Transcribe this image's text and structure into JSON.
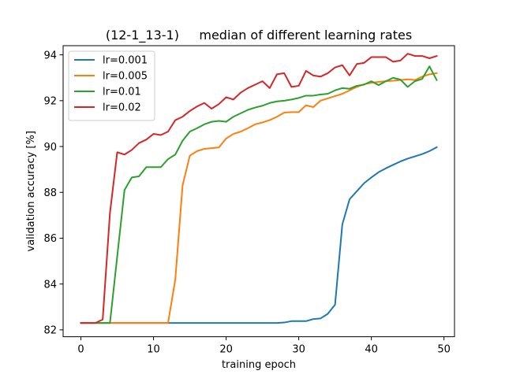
{
  "chart_data": {
    "type": "line",
    "title": "(12-1_13-1)     median of different learning rates",
    "xlabel": "training epoch",
    "ylabel": "validation accuracy [%]",
    "xlim": [
      -2.45,
      51.45
    ],
    "ylim": [
      81.7,
      94.4
    ],
    "xticks": [
      0,
      10,
      20,
      30,
      40,
      50
    ],
    "yticks": [
      82,
      84,
      86,
      88,
      90,
      92,
      94
    ],
    "legend_position": "upper-left",
    "grid": false,
    "x": [
      0,
      1,
      2,
      3,
      4,
      5,
      6,
      7,
      8,
      9,
      10,
      11,
      12,
      13,
      14,
      15,
      16,
      17,
      18,
      19,
      20,
      21,
      22,
      23,
      24,
      25,
      26,
      27,
      28,
      29,
      30,
      31,
      32,
      33,
      34,
      35,
      36,
      37,
      38,
      39,
      40,
      41,
      42,
      43,
      44,
      45,
      46,
      47,
      48,
      49
    ],
    "series": [
      {
        "name": "lr=0.001",
        "color": "#1f77b4",
        "values": [
          82.3,
          82.3,
          82.3,
          82.3,
          82.3,
          82.3,
          82.3,
          82.3,
          82.3,
          82.3,
          82.3,
          82.3,
          82.3,
          82.3,
          82.3,
          82.3,
          82.3,
          82.3,
          82.3,
          82.3,
          82.3,
          82.3,
          82.3,
          82.3,
          82.3,
          82.3,
          82.3,
          82.3,
          82.32,
          82.38,
          82.38,
          82.38,
          82.47,
          82.5,
          82.7,
          83.1,
          86.6,
          87.7,
          88.05,
          88.4,
          88.65,
          88.88,
          89.05,
          89.2,
          89.35,
          89.47,
          89.57,
          89.67,
          89.8,
          89.97
        ]
      },
      {
        "name": "lr=0.005",
        "color": "#ff7f0e",
        "values": [
          82.3,
          82.3,
          82.3,
          82.3,
          82.3,
          82.3,
          82.3,
          82.3,
          82.3,
          82.3,
          82.3,
          82.3,
          82.3,
          84.2,
          88.3,
          89.6,
          89.8,
          89.9,
          89.93,
          89.96,
          90.35,
          90.55,
          90.65,
          90.8,
          90.97,
          91.05,
          91.15,
          91.3,
          91.48,
          91.5,
          91.5,
          91.8,
          91.72,
          92.0,
          92.1,
          92.2,
          92.3,
          92.45,
          92.6,
          92.72,
          92.78,
          92.82,
          92.85,
          92.87,
          92.9,
          92.93,
          92.9,
          93.05,
          93.15,
          93.2
        ]
      },
      {
        "name": "lr=0.01",
        "color": "#2ca02c",
        "values": [
          82.3,
          82.3,
          82.3,
          82.3,
          82.3,
          85.2,
          88.1,
          88.65,
          88.7,
          89.1,
          89.1,
          89.1,
          89.45,
          89.65,
          90.25,
          90.65,
          90.8,
          90.97,
          91.08,
          91.12,
          91.08,
          91.3,
          91.45,
          91.6,
          91.7,
          91.78,
          91.9,
          91.97,
          92.0,
          92.05,
          92.12,
          92.22,
          92.22,
          92.27,
          92.3,
          92.45,
          92.55,
          92.52,
          92.65,
          92.7,
          92.85,
          92.68,
          92.85,
          93.0,
          92.92,
          92.6,
          92.85,
          92.95,
          93.5,
          92.9
        ]
      },
      {
        "name": "lr=0.02",
        "color": "#d62728",
        "values": [
          82.3,
          82.3,
          82.3,
          82.45,
          87.1,
          89.75,
          89.65,
          89.85,
          90.15,
          90.3,
          90.55,
          90.5,
          90.65,
          91.15,
          91.3,
          91.55,
          91.75,
          91.9,
          91.65,
          91.85,
          92.15,
          92.05,
          92.35,
          92.55,
          92.7,
          92.85,
          92.55,
          93.15,
          93.2,
          92.6,
          92.65,
          93.3,
          93.1,
          93.05,
          93.2,
          93.45,
          93.55,
          93.1,
          93.6,
          93.65,
          93.9,
          93.9,
          93.9,
          93.7,
          93.75,
          94.05,
          93.95,
          93.95,
          93.85,
          93.95
        ]
      }
    ]
  }
}
